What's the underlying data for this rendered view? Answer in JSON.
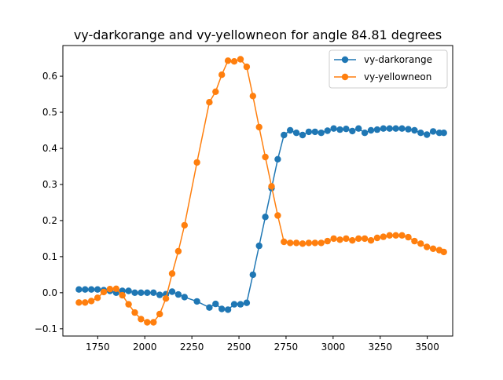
{
  "chart_data": {
    "type": "line",
    "title": "vy-darkorange and vy-yellowneon for angle 84.81 degrees",
    "xlabel": "",
    "ylabel": "",
    "xlim": [
      1565,
      3635
    ],
    "ylim": [
      -0.12,
      0.685
    ],
    "xticks": [
      1750,
      2000,
      2250,
      2500,
      2750,
      3000,
      3250,
      3500
    ],
    "xtick_labels": [
      "1750",
      "2000",
      "2250",
      "2500",
      "2750",
      "3000",
      "3250",
      "3500"
    ],
    "yticks": [
      -0.1,
      0.0,
      0.1,
      0.2,
      0.3,
      0.4,
      0.5,
      0.6
    ],
    "ytick_labels": [
      "−0.1",
      "0.0",
      "0.1",
      "0.2",
      "0.3",
      "0.4",
      "0.5",
      "0.6"
    ],
    "grid": false,
    "legend_position": "top-right",
    "x": [
      1650,
      1683,
      1716,
      1749,
      1782,
      1815,
      1848,
      1881,
      1914,
      1947,
      1980,
      2013,
      2046,
      2079,
      2112,
      2145,
      2178,
      2211,
      2277,
      2343,
      2376,
      2409,
      2442,
      2475,
      2508,
      2541,
      2574,
      2607,
      2640,
      2673,
      2706,
      2739,
      2772,
      2805,
      2838,
      2871,
      2904,
      2937,
      2970,
      3003,
      3036,
      3069,
      3102,
      3135,
      3168,
      3201,
      3234,
      3267,
      3300,
      3333,
      3366,
      3399,
      3432,
      3465,
      3498,
      3531,
      3564,
      3588
    ],
    "series": [
      {
        "name": "vy-darkorange",
        "color": "#1f77b4",
        "values": [
          0.009,
          0.009,
          0.009,
          0.009,
          0.007,
          0.005,
          0.0,
          0.005,
          0.005,
          0.0,
          0.0,
          0.0,
          0.0,
          -0.006,
          -0.004,
          0.003,
          -0.005,
          -0.012,
          -0.024,
          -0.041,
          -0.031,
          -0.045,
          -0.047,
          -0.032,
          -0.032,
          -0.028,
          0.05,
          0.13,
          0.21,
          0.29,
          0.37,
          0.437,
          0.45,
          0.443,
          0.437,
          0.446,
          0.446,
          0.443,
          0.449,
          0.455,
          0.452,
          0.454,
          0.448,
          0.455,
          0.443,
          0.45,
          0.452,
          0.455,
          0.455,
          0.455,
          0.455,
          0.453,
          0.45,
          0.443,
          0.438,
          0.447,
          0.443,
          0.443
        ]
      },
      {
        "name": "vy-yellowneon",
        "color": "#ff7f0e",
        "values": [
          -0.027,
          -0.027,
          -0.023,
          -0.014,
          0.002,
          0.01,
          0.011,
          -0.007,
          -0.032,
          -0.055,
          -0.073,
          -0.082,
          -0.082,
          -0.059,
          -0.016,
          0.053,
          0.115,
          0.187,
          0.361,
          0.528,
          0.557,
          0.604,
          0.643,
          0.641,
          0.647,
          0.626,
          0.545,
          0.459,
          0.376,
          0.295,
          0.214,
          0.141,
          0.138,
          0.138,
          0.136,
          0.138,
          0.138,
          0.138,
          0.143,
          0.15,
          0.147,
          0.15,
          0.145,
          0.15,
          0.15,
          0.145,
          0.152,
          0.155,
          0.159,
          0.159,
          0.159,
          0.154,
          0.143,
          0.136,
          0.127,
          0.122,
          0.118,
          0.113
        ]
      }
    ]
  }
}
